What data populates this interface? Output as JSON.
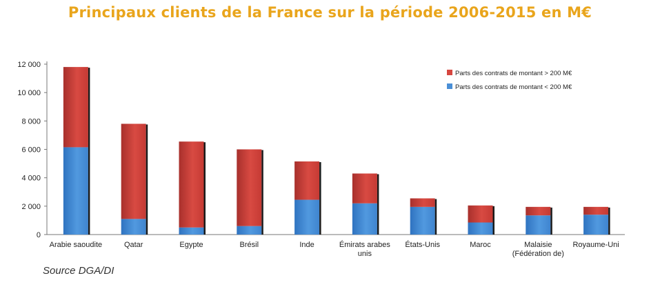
{
  "chart_data": {
    "type": "bar",
    "stacked": true,
    "title": "Principaux clients de la France sur la période 2006-2015 en M€",
    "source": "Source DGA/DI",
    "categories": [
      [
        "Arabie saoudite"
      ],
      [
        "Qatar"
      ],
      [
        "Egypte"
      ],
      [
        "Brésil"
      ],
      [
        "Inde"
      ],
      [
        "Émirats arabes",
        "unis"
      ],
      [
        "États-Unis"
      ],
      [
        "Maroc"
      ],
      [
        "Malaisie",
        "(Fédération de)"
      ],
      [
        "Royaume-Uni"
      ]
    ],
    "series": [
      {
        "name": "Parts des  contrats de montant < 200 M€",
        "color": "#4a8fd6",
        "values": [
          6150,
          1100,
          500,
          600,
          2450,
          2200,
          1950,
          850,
          1350,
          1400
        ]
      },
      {
        "name": "Parts des  contrats de montant > 200 M€",
        "color": "#d6463f",
        "values": [
          5650,
          6700,
          6050,
          5400,
          2700,
          2100,
          600,
          1200,
          600,
          550
        ]
      }
    ],
    "ylim": [
      0,
      12000
    ],
    "yticks": [
      0,
      2000,
      4000,
      6000,
      8000,
      10000,
      12000
    ],
    "ytick_labels": [
      "0",
      "2 000",
      "4 000",
      "6 000",
      "8 000",
      "10 000",
      "12 000"
    ],
    "legend": [
      "Parts des  contrats de montant > 200 M€",
      "Parts des  contrats de montant < 200 M€"
    ],
    "legend_position": "top-right",
    "grid": false
  }
}
